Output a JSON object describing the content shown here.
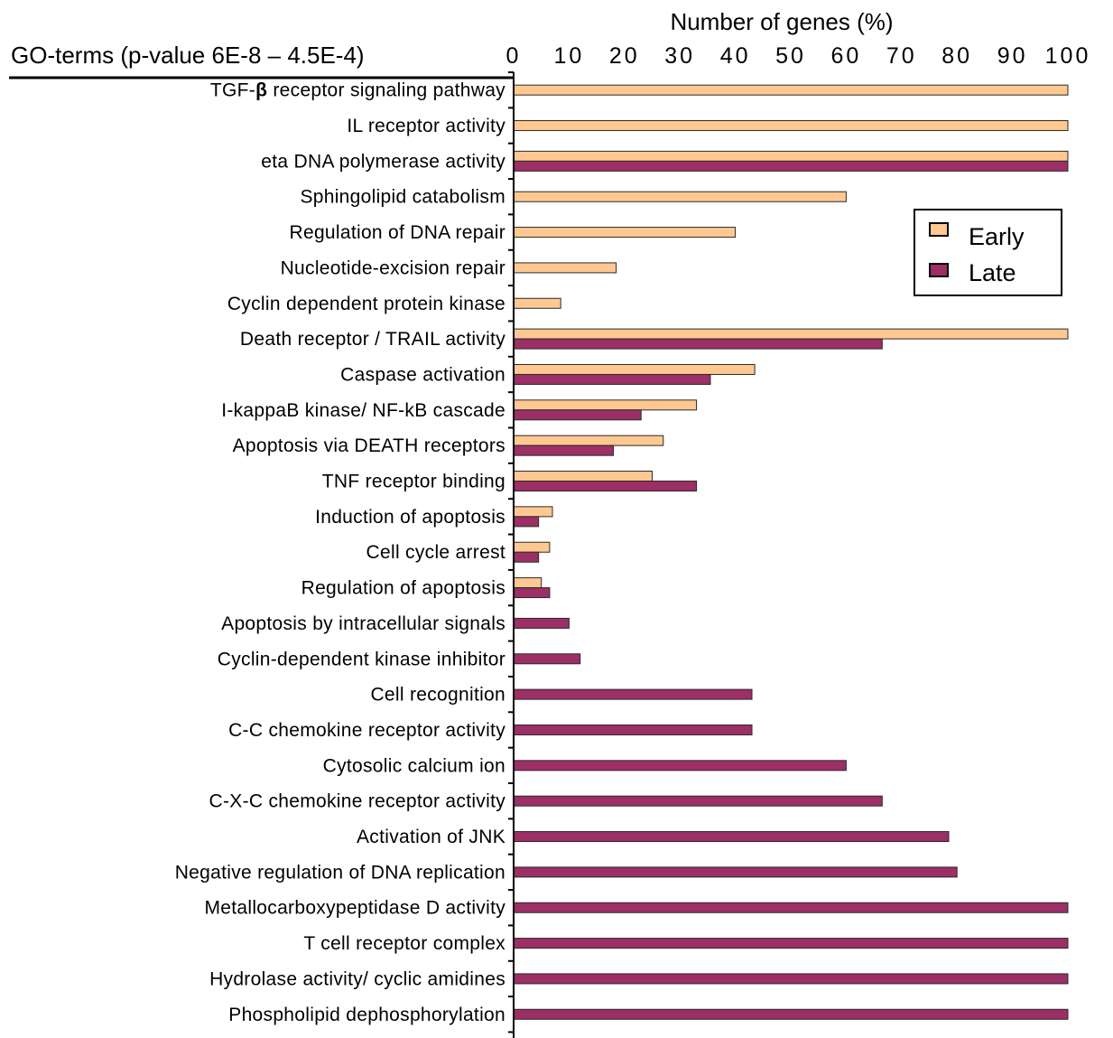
{
  "chart_data": {
    "type": "bar",
    "orientation": "horizontal",
    "title": "",
    "row_header": "GO-terms (p-value 6E-8 – 4.5E-4)",
    "xlabel": "Number of genes (%)",
    "ylabel": "",
    "xlim": [
      0,
      100
    ],
    "x_ticks": [
      "0",
      "10",
      "20",
      "30",
      "40",
      "50",
      "60",
      "70",
      "80",
      "90",
      "100"
    ],
    "grid": false,
    "legend_position": "right",
    "categories": [
      "TGF-β receptor signaling pathway",
      "IL receptor activity",
      "eta DNA polymerase activity",
      "Sphingolipid catabolism",
      "Regulation of DNA repair",
      "Nucleotide-excision repair",
      "Cyclin dependent protein kinase",
      "Death receptor / TRAIL activity",
      "Caspase activation",
      "I-kappaB kinase/ NF-kB cascade",
      "Apoptosis via DEATH receptors",
      "TNF receptor binding",
      "Induction of apoptosis",
      "Cell cycle arrest",
      "Regulation of apoptosis",
      "Apoptosis by intracellular signals",
      "Cyclin-dependent kinase inhibitor",
      "Cell recognition",
      "C-C chemokine receptor activity",
      "Cytosolic calcium ion",
      "C-X-C chemokine receptor activity",
      "Activation of JNK",
      "Negative regulation of DNA replication",
      "Metallocarboxypeptidase D activity",
      "T cell receptor complex",
      "Hydrolase activity/ cyclic amidines",
      "Phospholipid dephosphorylation"
    ],
    "series": [
      {
        "name": "Early",
        "color": "#ffc891",
        "values": [
          100,
          100,
          100,
          60,
          40,
          18.5,
          8.5,
          100,
          43.5,
          33,
          27,
          25,
          7,
          6.5,
          5,
          null,
          null,
          null,
          null,
          null,
          null,
          null,
          null,
          null,
          null,
          null,
          null
        ]
      },
      {
        "name": "Late",
        "color": "#9c2f66",
        "values": [
          null,
          null,
          100,
          null,
          null,
          null,
          null,
          66.5,
          35.5,
          23,
          18,
          33,
          4.5,
          4.5,
          6.5,
          10,
          12,
          43,
          43,
          60,
          66.5,
          78.5,
          80,
          100,
          100,
          100,
          100
        ]
      }
    ]
  },
  "legend": {
    "items": [
      {
        "label": "Early",
        "color": "#ffc891"
      },
      {
        "label": "Late",
        "color": "#9c2f66"
      }
    ]
  }
}
